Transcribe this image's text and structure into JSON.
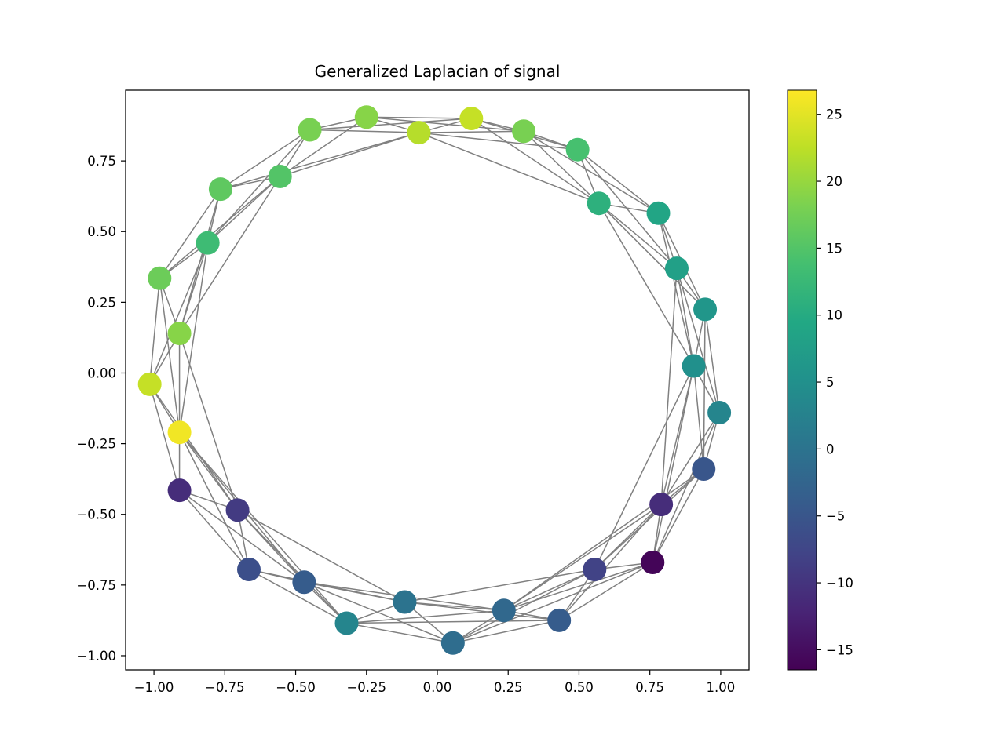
{
  "chart_data": {
    "type": "scatter",
    "subtype": "graph",
    "title": "Generalized Laplacian of signal",
    "xlabel": "",
    "ylabel": "",
    "xlim": [
      -1.1,
      1.1
    ],
    "ylim": [
      -1.05,
      1.0
    ],
    "xticks": [
      -1.0,
      -0.75,
      -0.5,
      -0.25,
      0.0,
      0.25,
      0.5,
      0.75,
      1.0
    ],
    "xtick_labels": [
      "−1.00",
      "−0.75",
      "−0.50",
      "−0.25",
      "0.00",
      "0.25",
      "0.50",
      "0.75",
      "1.00"
    ],
    "yticks": [
      0.75,
      0.5,
      0.25,
      0.0,
      -0.25,
      -0.5,
      -0.75,
      -1.0
    ],
    "ytick_labels": [
      "0.75",
      "0.50",
      "0.25",
      "0.00",
      "−0.25",
      "−0.50",
      "−0.75",
      "−1.00"
    ],
    "grid": false,
    "edge_color": "#808080",
    "colormap": "viridis",
    "colorbar": {
      "range": [
        -16.5,
        26.8
      ],
      "ticks": [
        25,
        20,
        15,
        10,
        5,
        0,
        -5,
        -10,
        -15
      ],
      "tick_labels": [
        "25",
        "20",
        "15",
        "10",
        "5",
        "0",
        "−5",
        "−10",
        "−15"
      ]
    },
    "nodes": [
      {
        "x": -0.25,
        "y": 0.905,
        "value": 19
      },
      {
        "x": -0.45,
        "y": 0.86,
        "value": 18
      },
      {
        "x": -0.065,
        "y": 0.85,
        "value": 22
      },
      {
        "x": 0.12,
        "y": 0.9,
        "value": 23
      },
      {
        "x": 0.305,
        "y": 0.855,
        "value": 18
      },
      {
        "x": 0.495,
        "y": 0.79,
        "value": 14
      },
      {
        "x": -0.555,
        "y": 0.695,
        "value": 15
      },
      {
        "x": -0.765,
        "y": 0.65,
        "value": 16
      },
      {
        "x": 0.57,
        "y": 0.6,
        "value": 11
      },
      {
        "x": 0.78,
        "y": 0.565,
        "value": 9
      },
      {
        "x": -0.81,
        "y": 0.46,
        "value": 13
      },
      {
        "x": 0.845,
        "y": 0.37,
        "value": 8
      },
      {
        "x": -0.98,
        "y": 0.335,
        "value": 17
      },
      {
        "x": 0.945,
        "y": 0.225,
        "value": 6
      },
      {
        "x": -0.91,
        "y": 0.14,
        "value": 19
      },
      {
        "x": 0.905,
        "y": 0.025,
        "value": 5
      },
      {
        "x": -1.015,
        "y": -0.04,
        "value": 23
      },
      {
        "x": 0.995,
        "y": -0.14,
        "value": 3
      },
      {
        "x": -0.91,
        "y": -0.21,
        "value": 26
      },
      {
        "x": 0.94,
        "y": -0.34,
        "value": -5
      },
      {
        "x": -0.91,
        "y": -0.415,
        "value": -11
      },
      {
        "x": 0.79,
        "y": -0.465,
        "value": -11
      },
      {
        "x": -0.705,
        "y": -0.485,
        "value": -9
      },
      {
        "x": 0.76,
        "y": -0.67,
        "value": -16
      },
      {
        "x": -0.665,
        "y": -0.695,
        "value": -6
      },
      {
        "x": 0.555,
        "y": -0.695,
        "value": -8
      },
      {
        "x": -0.47,
        "y": -0.74,
        "value": -4
      },
      {
        "x": -0.115,
        "y": -0.81,
        "value": 0
      },
      {
        "x": 0.235,
        "y": -0.84,
        "value": -2
      },
      {
        "x": 0.43,
        "y": -0.875,
        "value": -4
      },
      {
        "x": -0.32,
        "y": -0.885,
        "value": 3
      },
      {
        "x": 0.055,
        "y": -0.955,
        "value": -1
      }
    ],
    "edges": [
      [
        0,
        1
      ],
      [
        0,
        2
      ],
      [
        0,
        3
      ],
      [
        0,
        4
      ],
      [
        0,
        6
      ],
      [
        1,
        2
      ],
      [
        1,
        6
      ],
      [
        1,
        7
      ],
      [
        1,
        10
      ],
      [
        1,
        3
      ],
      [
        2,
        3
      ],
      [
        2,
        4
      ],
      [
        2,
        5
      ],
      [
        2,
        8
      ],
      [
        2,
        6
      ],
      [
        2,
        7
      ],
      [
        3,
        4
      ],
      [
        3,
        5
      ],
      [
        3,
        8
      ],
      [
        4,
        5
      ],
      [
        4,
        8
      ],
      [
        4,
        9
      ],
      [
        5,
        8
      ],
      [
        5,
        9
      ],
      [
        5,
        11
      ],
      [
        6,
        7
      ],
      [
        6,
        10
      ],
      [
        6,
        12
      ],
      [
        6,
        14
      ],
      [
        7,
        10
      ],
      [
        7,
        12
      ],
      [
        7,
        14
      ],
      [
        8,
        9
      ],
      [
        8,
        11
      ],
      [
        8,
        15
      ],
      [
        8,
        13
      ],
      [
        9,
        11
      ],
      [
        9,
        13
      ],
      [
        9,
        15
      ],
      [
        10,
        12
      ],
      [
        10,
        14
      ],
      [
        10,
        16
      ],
      [
        10,
        18
      ],
      [
        11,
        13
      ],
      [
        11,
        15
      ],
      [
        11,
        17
      ],
      [
        11,
        21
      ],
      [
        12,
        14
      ],
      [
        12,
        16
      ],
      [
        12,
        18
      ],
      [
        13,
        15
      ],
      [
        13,
        17
      ],
      [
        13,
        19
      ],
      [
        14,
        16
      ],
      [
        14,
        18
      ],
      [
        14,
        22
      ],
      [
        15,
        17
      ],
      [
        15,
        19
      ],
      [
        15,
        21
      ],
      [
        15,
        23
      ],
      [
        15,
        25
      ],
      [
        16,
        18
      ],
      [
        16,
        20
      ],
      [
        16,
        22
      ],
      [
        17,
        19
      ],
      [
        17,
        21
      ],
      [
        17,
        23
      ],
      [
        18,
        20
      ],
      [
        18,
        22
      ],
      [
        18,
        24
      ],
      [
        18,
        26
      ],
      [
        18,
        30
      ],
      [
        19,
        21
      ],
      [
        19,
        23
      ],
      [
        19,
        25
      ],
      [
        19,
        28
      ],
      [
        20,
        22
      ],
      [
        20,
        24
      ],
      [
        20,
        26
      ],
      [
        21,
        23
      ],
      [
        21,
        25
      ],
      [
        21,
        28
      ],
      [
        21,
        29
      ],
      [
        22,
        24
      ],
      [
        22,
        26
      ],
      [
        22,
        30
      ],
      [
        22,
        27
      ],
      [
        23,
        25
      ],
      [
        23,
        28
      ],
      [
        23,
        29
      ],
      [
        23,
        31
      ],
      [
        24,
        26
      ],
      [
        24,
        30
      ],
      [
        24,
        27
      ],
      [
        25,
        28
      ],
      [
        25,
        29
      ],
      [
        25,
        31
      ],
      [
        26,
        27
      ],
      [
        26,
        30
      ],
      [
        26,
        31
      ],
      [
        26,
        28
      ],
      [
        27,
        30
      ],
      [
        27,
        31
      ],
      [
        27,
        28
      ],
      [
        27,
        29
      ],
      [
        27,
        25
      ],
      [
        28,
        29
      ],
      [
        28,
        31
      ],
      [
        28,
        30
      ],
      [
        29,
        31
      ],
      [
        30,
        31
      ],
      [
        30,
        29
      ]
    ]
  }
}
